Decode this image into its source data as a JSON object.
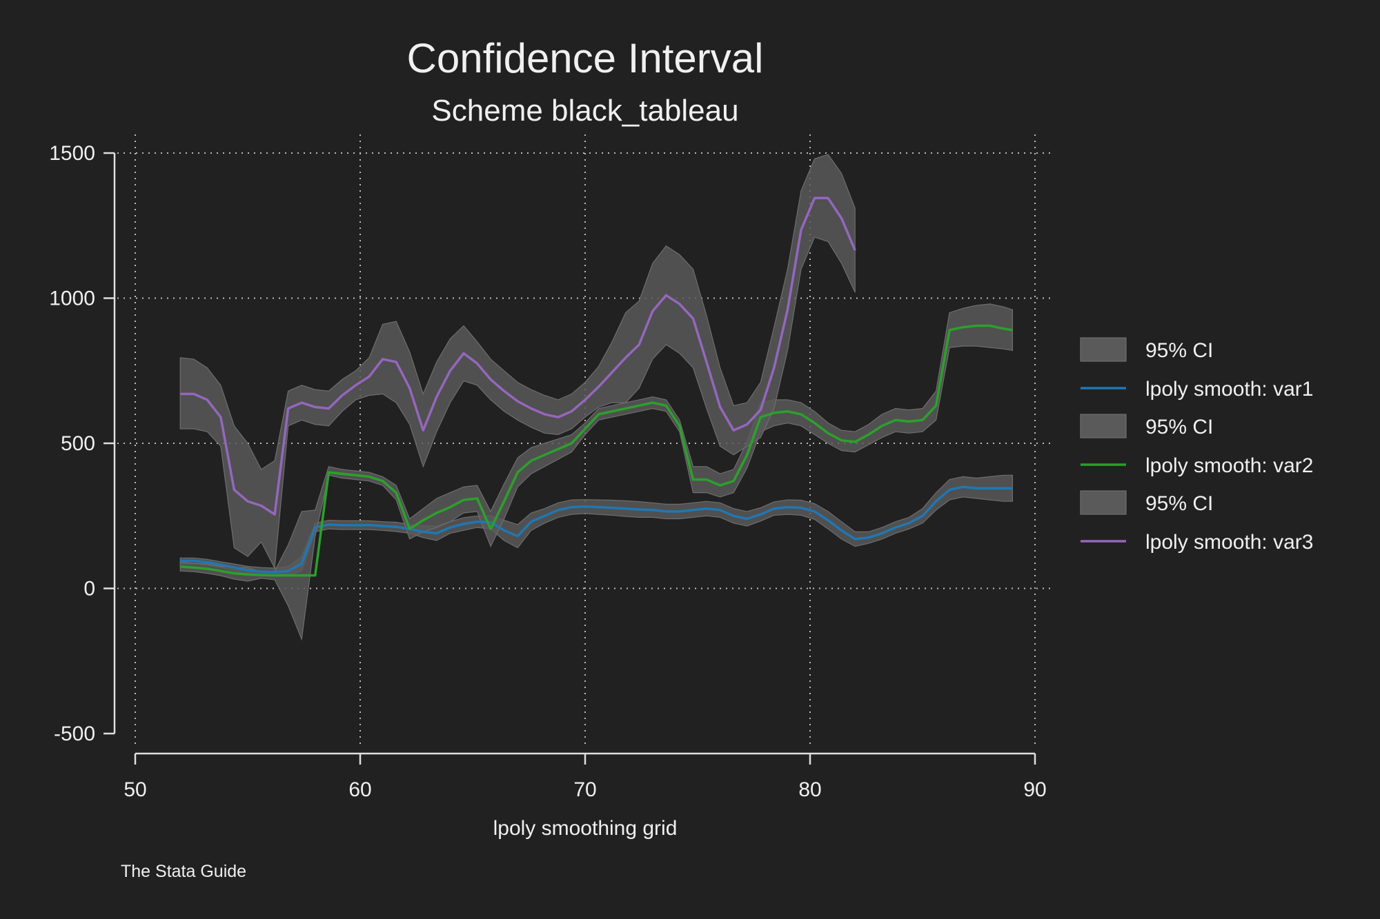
{
  "chart_data": {
    "type": "line",
    "title": "Confidence Interval",
    "subtitle": "Scheme black_tableau",
    "xlabel": "lpoly smoothing grid",
    "ylabel": "",
    "note": "The Stata Guide",
    "xlim": [
      50,
      90
    ],
    "ylim": [
      -500,
      1500
    ],
    "x_ticks": [
      "50",
      "60",
      "70",
      "80",
      "90"
    ],
    "y_ticks": [
      "-500",
      "0",
      "500",
      "1000",
      "1500"
    ],
    "grid": true,
    "legend_position": "right",
    "ci_color": "#5a5a5a",
    "x": [
      52,
      52.6,
      53.2,
      53.8,
      54.4,
      55,
      55.6,
      56.2,
      56.8,
      57.4,
      58,
      58.6,
      59.2,
      59.8,
      60.4,
      61,
      61.6,
      62.2,
      62.8,
      63.4,
      64,
      64.6,
      65.2,
      65.8,
      66.4,
      67,
      67.6,
      68.2,
      68.8,
      69.4,
      70,
      70.6,
      71.2,
      71.8,
      72.4,
      73,
      73.6,
      74.2,
      74.8,
      75.4,
      76,
      76.6,
      77.2,
      77.8,
      78.4,
      79,
      79.6,
      80.2,
      80.8,
      81.4,
      82,
      82.6,
      83.2,
      83.8,
      84.4,
      85,
      85.6,
      86.2,
      86.8,
      87.4,
      88,
      88.6,
      89
    ],
    "series": [
      {
        "name": "lpoly smooth: var1",
        "legend_ci_label": "95% CI",
        "color": "#1f77b4",
        "y": [
          95,
          95,
          90,
          82,
          72,
          62,
          58,
          56,
          60,
          85,
          210,
          220,
          218,
          218,
          218,
          215,
          212,
          205,
          195,
          190,
          210,
          222,
          230,
          228,
          200,
          180,
          230,
          250,
          270,
          280,
          282,
          280,
          278,
          275,
          272,
          270,
          265,
          265,
          270,
          275,
          270,
          250,
          240,
          255,
          275,
          280,
          278,
          265,
          235,
          200,
          170,
          175,
          190,
          210,
          225,
          250,
          300,
          340,
          350,
          345,
          345,
          345,
          345
        ],
        "ci_low": [
          85,
          85,
          80,
          72,
          60,
          48,
          45,
          42,
          45,
          60,
          195,
          205,
          203,
          203,
          203,
          200,
          196,
          190,
          175,
          165,
          190,
          200,
          210,
          205,
          165,
          140,
          200,
          225,
          245,
          255,
          258,
          255,
          252,
          248,
          245,
          245,
          240,
          240,
          245,
          250,
          245,
          225,
          215,
          232,
          252,
          255,
          252,
          238,
          205,
          170,
          145,
          155,
          170,
          190,
          205,
          225,
          270,
          305,
          315,
          310,
          305,
          300,
          300
        ],
        "ci_high": [
          105,
          105,
          100,
          92,
          84,
          76,
          72,
          70,
          75,
          110,
          225,
          235,
          233,
          233,
          233,
          230,
          228,
          220,
          215,
          215,
          230,
          244,
          250,
          251,
          235,
          220,
          260,
          275,
          295,
          305,
          306,
          305,
          304,
          302,
          299,
          295,
          290,
          290,
          295,
          300,
          295,
          275,
          265,
          278,
          298,
          305,
          304,
          292,
          265,
          230,
          195,
          195,
          210,
          230,
          245,
          275,
          330,
          375,
          385,
          380,
          385,
          390,
          390
        ]
      },
      {
        "name": "lpoly smooth: var2",
        "legend_ci_label": "95% CI",
        "color": "#2ca02c",
        "y": [
          75,
          72,
          68,
          60,
          52,
          48,
          46,
          45,
          45,
          45,
          45,
          400,
          395,
          390,
          385,
          370,
          330,
          205,
          235,
          260,
          280,
          305,
          310,
          205,
          300,
          400,
          440,
          460,
          480,
          500,
          550,
          600,
          610,
          620,
          630,
          640,
          630,
          560,
          375,
          375,
          355,
          370,
          460,
          590,
          605,
          610,
          600,
          570,
          535,
          510,
          505,
          530,
          560,
          580,
          575,
          580,
          630,
          890,
          900,
          905,
          905,
          895,
          890
        ],
        "ci_low": [
          60,
          58,
          52,
          44,
          32,
          25,
          35,
          30,
          -60,
          -175,
          180,
          390,
          380,
          375,
          370,
          355,
          305,
          170,
          195,
          210,
          230,
          260,
          265,
          145,
          240,
          350,
          395,
          420,
          445,
          470,
          530,
          580,
          590,
          600,
          610,
          620,
          610,
          540,
          330,
          330,
          315,
          330,
          415,
          540,
          560,
          570,
          560,
          530,
          500,
          475,
          470,
          495,
          520,
          540,
          535,
          540,
          580,
          830,
          835,
          835,
          830,
          825,
          820
        ],
        "ci_high": [
          90,
          86,
          84,
          76,
          72,
          71,
          57,
          60,
          150,
          265,
          270,
          420,
          410,
          405,
          400,
          385,
          355,
          240,
          275,
          310,
          330,
          350,
          355,
          265,
          360,
          450,
          485,
          500,
          515,
          530,
          570,
          620,
          630,
          640,
          650,
          660,
          650,
          580,
          420,
          420,
          395,
          410,
          505,
          640,
          650,
          650,
          640,
          610,
          570,
          545,
          540,
          565,
          600,
          620,
          615,
          620,
          680,
          950,
          965,
          975,
          980,
          970,
          960
        ]
      },
      {
        "name": "lpoly smooth: var3",
        "legend_ci_label": "95% CI",
        "color": "#9467bd",
        "y": [
          670,
          670,
          650,
          590,
          340,
          300,
          285,
          255,
          620,
          640,
          625,
          620,
          665,
          700,
          730,
          790,
          780,
          690,
          545,
          660,
          750,
          810,
          775,
          720,
          680,
          645,
          620,
          600,
          590,
          610,
          650,
          695,
          745,
          795,
          840,
          955,
          1010,
          980,
          930,
          780,
          625,
          545,
          565,
          615,
          760,
          960,
          1235,
          1345,
          1345,
          1275,
          1165
        ],
        "ci_low": [
          550,
          550,
          540,
          490,
          140,
          110,
          160,
          70,
          560,
          580,
          565,
          560,
          610,
          650,
          665,
          670,
          640,
          565,
          420,
          540,
          640,
          715,
          700,
          650,
          610,
          580,
          555,
          535,
          530,
          550,
          590,
          625,
          640,
          640,
          690,
          790,
          840,
          810,
          760,
          620,
          490,
          460,
          490,
          520,
          620,
          820,
          1100,
          1210,
          1195,
          1120,
          1020
        ],
        "ci_high": [
          795,
          790,
          760,
          700,
          560,
          500,
          410,
          440,
          680,
          700,
          685,
          680,
          720,
          750,
          795,
          910,
          920,
          815,
          670,
          780,
          860,
          905,
          850,
          790,
          750,
          710,
          685,
          665,
          650,
          670,
          710,
          765,
          850,
          950,
          990,
          1120,
          1180,
          1150,
          1100,
          940,
          760,
          630,
          640,
          710,
          900,
          1100,
          1370,
          1480,
          1495,
          1430,
          1310
        ],
        "x": [
          52,
          52.6,
          53.2,
          53.8,
          54.4,
          55,
          55.6,
          56.2,
          56.8,
          57.4,
          58,
          58.6,
          59.2,
          59.8,
          60.4,
          61,
          61.6,
          62.2,
          62.8,
          63.4,
          64,
          64.6,
          65.2,
          65.8,
          66.4,
          67,
          67.6,
          68.2,
          68.8,
          69.4,
          70,
          70.6,
          71.2,
          71.8,
          72.4,
          73,
          73.6,
          74.2,
          74.8,
          75.4,
          76,
          76.6,
          77.2,
          77.8,
          78.4,
          79,
          79.6,
          80.2,
          80.8,
          81.4,
          82
        ]
      }
    ]
  }
}
